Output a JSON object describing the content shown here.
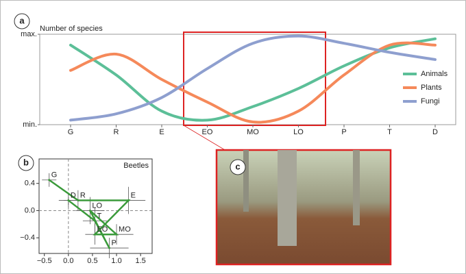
{
  "chart_data": [
    {
      "type": "line",
      "panel": "a",
      "y_label": "Number of species",
      "categories": [
        "G",
        "R",
        "E",
        "EO",
        "MO",
        "LO",
        "P",
        "T",
        "D"
      ],
      "ylim": [
        0,
        1
      ],
      "yticks": [
        {
          "value": 0,
          "label": "min."
        },
        {
          "value": 1,
          "label": "max."
        }
      ],
      "legend": "right",
      "series": [
        {
          "name": "Animals",
          "color": "#5cbf98",
          "values": [
            0.88,
            0.55,
            0.15,
            0.05,
            0.2,
            0.4,
            0.65,
            0.85,
            0.95
          ]
        },
        {
          "name": "Plants",
          "color": "#f5895a",
          "values": [
            0.6,
            0.78,
            0.5,
            0.25,
            0.03,
            0.15,
            0.55,
            0.88,
            0.88
          ]
        },
        {
          "name": "Fungi",
          "color": "#8e9fcf",
          "values": [
            0.05,
            0.12,
            0.3,
            0.62,
            0.9,
            0.98,
            0.9,
            0.8,
            0.72
          ]
        }
      ]
    },
    {
      "type": "scatter",
      "panel": "b",
      "title": "Beetles",
      "color": "#3a9a3a",
      "labels": [
        "G",
        "R",
        "E",
        "EO",
        "MO",
        "LO",
        "P",
        "T",
        "D"
      ],
      "x": [
        -0.4,
        0.2,
        1.25,
        0.55,
        1.0,
        0.45,
        0.85,
        0.55,
        0.0
      ],
      "y": [
        0.45,
        0.15,
        0.15,
        -0.35,
        -0.35,
        0.0,
        -0.55,
        -0.15,
        0.15
      ],
      "xerr": [
        0.15,
        0.3,
        0.35,
        0.2,
        0.35,
        0.3,
        0.4,
        0.25,
        0.2
      ],
      "yerr": [
        0.1,
        0.15,
        0.2,
        0.15,
        0.15,
        0.2,
        0.15,
        0.2,
        0.1
      ],
      "xlim": [
        -0.61,
        1.74
      ],
      "ylim": [
        -0.63,
        0.76
      ],
      "xticks": [
        {
          "value": -0.5,
          "label": "−0.5"
        },
        {
          "value": 0,
          "label": "0.0"
        },
        0.5,
        {
          "value": 1,
          "label": "1.0"
        },
        1.5
      ],
      "yticks": [
        0.4,
        {
          "value": 0,
          "label": "0.0"
        },
        {
          "value": -0.4,
          "label": "−0.4"
        }
      ]
    }
  ],
  "photo": {
    "label": "c"
  }
}
